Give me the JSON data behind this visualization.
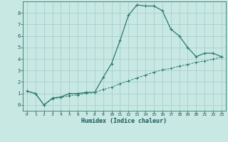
{
  "xlabel": "Humidex (Indice chaleur)",
  "x_values": [
    0,
    1,
    2,
    3,
    4,
    5,
    6,
    7,
    8,
    9,
    10,
    11,
    12,
    13,
    14,
    15,
    16,
    17,
    18,
    19,
    20,
    21,
    22,
    23
  ],
  "curve1_y": [
    1.2,
    1.0,
    0.0,
    0.6,
    0.7,
    1.0,
    1.0,
    1.1,
    1.1,
    2.4,
    3.6,
    5.6,
    7.8,
    8.7,
    8.6,
    8.6,
    8.2,
    6.6,
    6.0,
    5.0,
    4.2,
    4.5,
    4.5,
    4.2
  ],
  "curve2_y": [
    1.2,
    1.0,
    0.0,
    0.55,
    0.65,
    0.82,
    0.88,
    1.02,
    1.08,
    1.35,
    1.55,
    1.85,
    2.1,
    2.35,
    2.6,
    2.85,
    3.05,
    3.18,
    3.38,
    3.52,
    3.72,
    3.82,
    3.98,
    4.18
  ],
  "line_color": "#2a7a6a",
  "bg_color": "#c8e8e4",
  "grid_color": "#aacece",
  "ylim": [
    -0.5,
    9.0
  ],
  "xlim": [
    -0.5,
    23.5
  ],
  "yticks": [
    0,
    1,
    2,
    3,
    4,
    5,
    6,
    7,
    8
  ],
  "xticks": [
    0,
    1,
    2,
    3,
    4,
    5,
    6,
    7,
    8,
    9,
    10,
    11,
    12,
    13,
    14,
    15,
    16,
    17,
    18,
    19,
    20,
    21,
    22,
    23
  ]
}
